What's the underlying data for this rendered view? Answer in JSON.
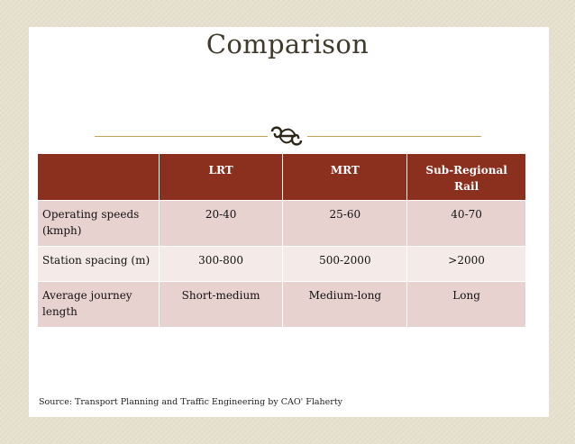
{
  "slide": {
    "title": "Comparison",
    "ornament_icon": "scroll-flourish-icon"
  },
  "table": {
    "headers": [
      "",
      "LRT",
      "MRT",
      "Sub-Regional Rail"
    ],
    "rows": [
      {
        "label": "Operating speeds (kmph)",
        "values": [
          "20-40",
          "25-60",
          "40-70"
        ]
      },
      {
        "label": "Station spacing (m)",
        "values": [
          "300-800",
          "500-2000",
          ">2000"
        ]
      },
      {
        "label": "Average journey length",
        "values": [
          "Short-medium",
          "Medium-long",
          "Long"
        ]
      }
    ]
  },
  "footer": {
    "source": "Source: Transport Planning and Traffic Engineering by CAO' Flaherty"
  },
  "colors": {
    "header_bg": "#8b2f1e",
    "row_shade": "#e8d2d0",
    "row_plain": "#f4ebe9",
    "accent_rule": "#c2a35e",
    "frame_bg": "#e6e0cf"
  }
}
